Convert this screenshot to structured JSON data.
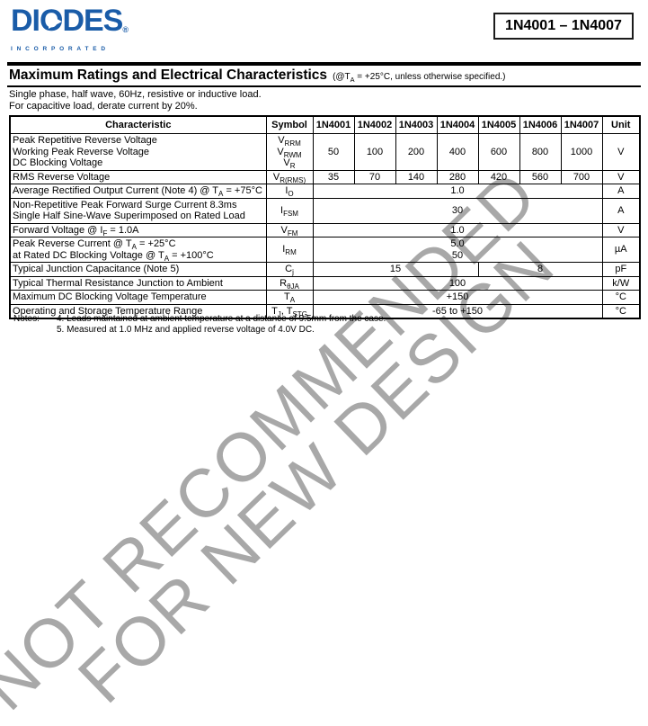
{
  "header": {
    "logo": {
      "brand": "DIODES",
      "registered": "®",
      "sub": "INCORPORATED",
      "brand_color": "#1a5ca8"
    },
    "part_number": "1N4001 – 1N4007"
  },
  "section": {
    "title": "Maximum Ratings and Electrical Characteristics",
    "title_note": "(@T_{A} = +25°C, unless otherwise specified.)",
    "intro_lines": [
      "Single phase, half wave, 60Hz, resistive or inductive load.",
      "For capacitive load, derate current by 20%."
    ]
  },
  "table": {
    "columns": [
      "Characteristic",
      "Symbol",
      "1N4001",
      "1N4002",
      "1N4003",
      "1N4004",
      "1N4005",
      "1N4006",
      "1N4007",
      "Unit"
    ],
    "rows": [
      {
        "characteristic": [
          "Peak Repetitive Reverse Voltage",
          "Working Peak Reverse Voltage",
          "DC Blocking Voltage"
        ],
        "symbol": [
          "V_{RRM}",
          "V_{RWM}",
          "V_{R}"
        ],
        "values": [
          {
            "lines": [
              "50"
            ],
            "span": 1
          },
          {
            "lines": [
              "100"
            ],
            "span": 1
          },
          {
            "lines": [
              "200"
            ],
            "span": 1
          },
          {
            "lines": [
              "400"
            ],
            "span": 1
          },
          {
            "lines": [
              "600"
            ],
            "span": 1
          },
          {
            "lines": [
              "800"
            ],
            "span": 1
          },
          {
            "lines": [
              "1000"
            ],
            "span": 1
          }
        ],
        "unit": "V"
      },
      {
        "characteristic": [
          "RMS Reverse Voltage"
        ],
        "symbol": [
          "V_{R(RMS)}"
        ],
        "values": [
          {
            "lines": [
              "35"
            ],
            "span": 1
          },
          {
            "lines": [
              "70"
            ],
            "span": 1
          },
          {
            "lines": [
              "140"
            ],
            "span": 1
          },
          {
            "lines": [
              "280"
            ],
            "span": 1
          },
          {
            "lines": [
              "420"
            ],
            "span": 1
          },
          {
            "lines": [
              "560"
            ],
            "span": 1
          },
          {
            "lines": [
              "700"
            ],
            "span": 1
          }
        ],
        "unit": "V"
      },
      {
        "characteristic": [
          "Average Rectified Output Current (Note 4) @ T_{A} = +75°C"
        ],
        "symbol": [
          "I_{O}"
        ],
        "values": [
          {
            "lines": [
              "1.0"
            ],
            "span": 7
          }
        ],
        "unit": "A"
      },
      {
        "characteristic": [
          "Non-Repetitive Peak Forward Surge Current 8.3ms",
          "Single Half Sine-Wave Superimposed on Rated Load"
        ],
        "symbol": [
          "I_{FSM}"
        ],
        "values": [
          {
            "lines": [
              "30"
            ],
            "span": 7
          }
        ],
        "unit": "A"
      },
      {
        "characteristic": [
          "Forward Voltage @ I_{F} = 1.0A"
        ],
        "symbol": [
          "V_{FM}"
        ],
        "values": [
          {
            "lines": [
              "1.0"
            ],
            "span": 7
          }
        ],
        "unit": "V"
      },
      {
        "characteristic": [
          "Peak Reverse Current @ T_{A} = +25°C",
          "at Rated DC Blocking Voltage @ T_{A} = +100°C"
        ],
        "symbol": [
          "I_{RM}"
        ],
        "values": [
          {
            "lines": [
              "5.0",
              "50"
            ],
            "span": 7
          }
        ],
        "unit": "µA"
      },
      {
        "characteristic": [
          "Typical Junction Capacitance (Note 5)"
        ],
        "symbol": [
          "C_{j}"
        ],
        "values": [
          {
            "lines": [
              "15"
            ],
            "span": 4
          },
          {
            "lines": [
              "8"
            ],
            "span": 3
          }
        ],
        "unit": "pF"
      },
      {
        "characteristic": [
          "Typical Thermal Resistance Junction to Ambient"
        ],
        "symbol": [
          "R_{θJA}"
        ],
        "values": [
          {
            "lines": [
              "100"
            ],
            "span": 7
          }
        ],
        "unit": "k/W"
      },
      {
        "characteristic": [
          "Maximum DC Blocking Voltage Temperature"
        ],
        "symbol": [
          "T_{A}"
        ],
        "values": [
          {
            "lines": [
              "+150"
            ],
            "span": 7
          }
        ],
        "unit": "°C"
      },
      {
        "characteristic": [
          "Operating and Storage Temperature Range"
        ],
        "symbol": [
          "T_{J}, T_{STG}"
        ],
        "values": [
          {
            "lines": [
              "-65 to +150"
            ],
            "span": 7
          }
        ],
        "unit": "°C"
      }
    ]
  },
  "notes": {
    "label": "Notes:",
    "items": [
      "4. Leads maintained at ambient temperature at a distance of 9.5mm from the case.",
      "5. Measured at 1.0 MHz and applied reverse voltage of 4.0V DC."
    ]
  },
  "watermark": {
    "line1": "NOT RECOMMENDED",
    "line2": "FOR NEW DESIGN",
    "color": "#a8a8a8"
  }
}
